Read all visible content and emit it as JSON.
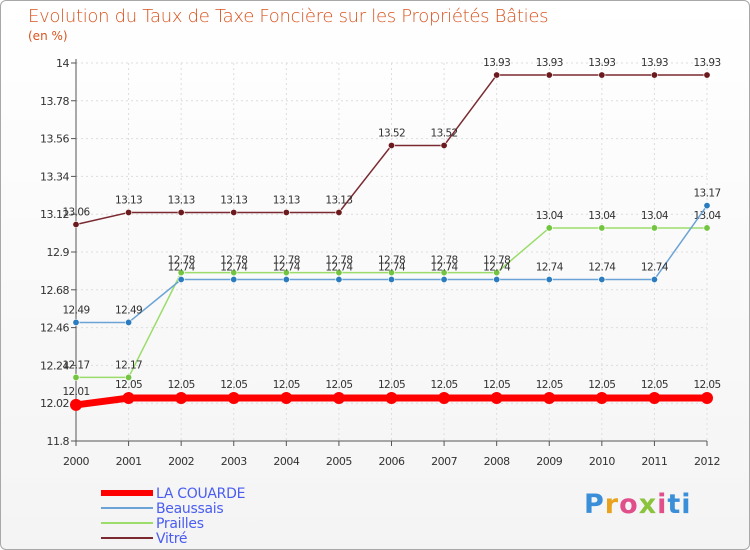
{
  "header": {
    "title": "Evolution du Taux de Taxe Foncière sur les Propriétés Bâties",
    "subtitle": "(en %)"
  },
  "logo": {
    "text": "Proxiti",
    "letters": [
      "P",
      "r",
      "o",
      "x",
      "i",
      "ti"
    ]
  },
  "chart_data": {
    "type": "line",
    "title": "Evolution du Taux de Taxe Foncière sur les Propriétés Bâties",
    "ylabel": "(en %)",
    "xlabel": "",
    "ylim": [
      11.8,
      14
    ],
    "yticks": [
      11.8,
      12.02,
      12.24,
      12.46,
      12.68,
      12.9,
      13.12,
      13.34,
      13.56,
      13.78,
      14
    ],
    "ytick_labels": [
      "11.8",
      "12.02",
      "12.24",
      "12.46",
      "12.68",
      "12.9",
      "13.12",
      "13.34",
      "13.56",
      "13.78",
      "14"
    ],
    "categories": [
      "2000",
      "2001",
      "2002",
      "2003",
      "2004",
      "2005",
      "2006",
      "2007",
      "2008",
      "2009",
      "2010",
      "2011",
      "2012"
    ],
    "legend_position": "bottom-left",
    "series": [
      {
        "name": "LA COUARDE",
        "color": "#ff0000",
        "values": [
          12.01,
          12.05,
          12.05,
          12.05,
          12.05,
          12.05,
          12.05,
          12.05,
          12.05,
          12.05,
          12.05,
          12.05,
          12.05
        ],
        "labels": [
          "12.01",
          "12.05",
          "12.05",
          "12.05",
          "12.05",
          "12.05",
          "12.05",
          "12.05",
          "12.05",
          "12.05",
          "12.05",
          "12.05",
          "12.05"
        ]
      },
      {
        "name": "Beaussais",
        "color": "#6ba3d6",
        "marker": "#2b7bbf",
        "values": [
          12.49,
          12.49,
          12.74,
          12.74,
          12.74,
          12.74,
          12.74,
          12.74,
          12.74,
          12.74,
          12.74,
          12.74,
          13.17
        ],
        "labels": [
          "12.49",
          "12.49",
          "12.74",
          "12.74",
          "12.74",
          "12.74",
          "12.74",
          "12.74",
          "12.74",
          "12.74",
          "12.74",
          "12.74",
          "13.17"
        ]
      },
      {
        "name": "Prailles",
        "color": "#9bdc6a",
        "marker": "#73c441",
        "values": [
          12.17,
          12.17,
          12.78,
          12.78,
          12.78,
          12.78,
          12.78,
          12.78,
          12.78,
          13.04,
          13.04,
          13.04,
          13.04
        ],
        "labels": [
          "12.17",
          "12.17",
          "12.78",
          "12.78",
          "12.78",
          "12.78",
          "12.78",
          "12.78",
          "12.78",
          "13.04",
          "13.04",
          "13.04",
          "13.04"
        ]
      },
      {
        "name": "Vitré",
        "color": "#7a2a30",
        "marker": "#6b1a1e",
        "values": [
          13.06,
          13.13,
          13.13,
          13.13,
          13.13,
          13.13,
          13.52,
          13.52,
          13.93,
          13.93,
          13.93,
          13.93,
          13.93
        ],
        "labels": [
          "13.06",
          "13.13",
          "13.13",
          "13.13",
          "13.13",
          "13.13",
          "13.52",
          "13.52",
          "13.93",
          "13.93",
          "13.93",
          "13.93",
          "13.93"
        ]
      }
    ]
  }
}
